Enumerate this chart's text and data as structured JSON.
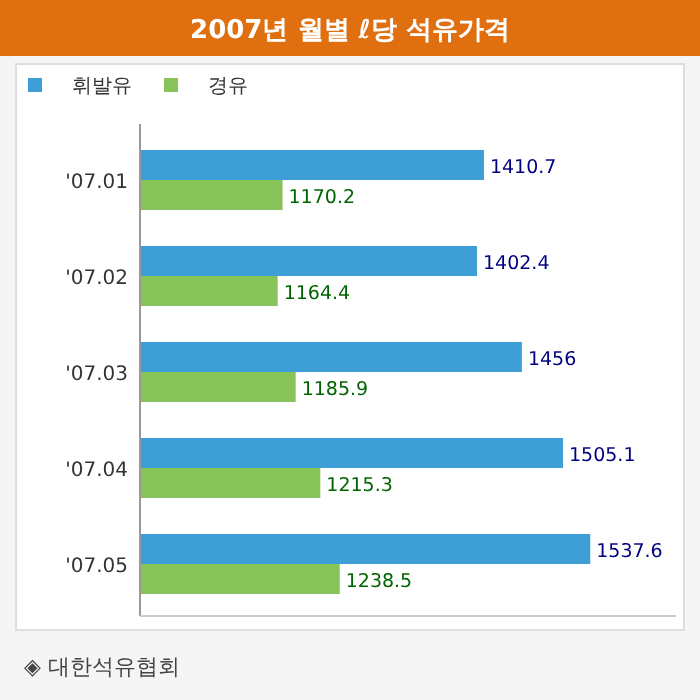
{
  "chart_data": {
    "type": "bar",
    "orientation": "horizontal",
    "title": "2007년 월별 ℓ당 석유가격",
    "categories": [
      "'07.01",
      "'07.02",
      "'07.03",
      "'07.04",
      "'07.05"
    ],
    "series": [
      {
        "name": "휘발유",
        "color": "#3e9fd6",
        "values": [
          1410.7,
          1402.4,
          1456,
          1505.1,
          1537.6
        ]
      },
      {
        "name": "경유",
        "color": "#88c35a",
        "values": [
          1170.2,
          1164.4,
          1185.9,
          1215.3,
          1238.5
        ]
      }
    ],
    "xlim": [
      1000,
      1640
    ],
    "data_labels": true,
    "legend": "top left",
    "annotations": [
      "◈ 대한석유협회"
    ]
  }
}
